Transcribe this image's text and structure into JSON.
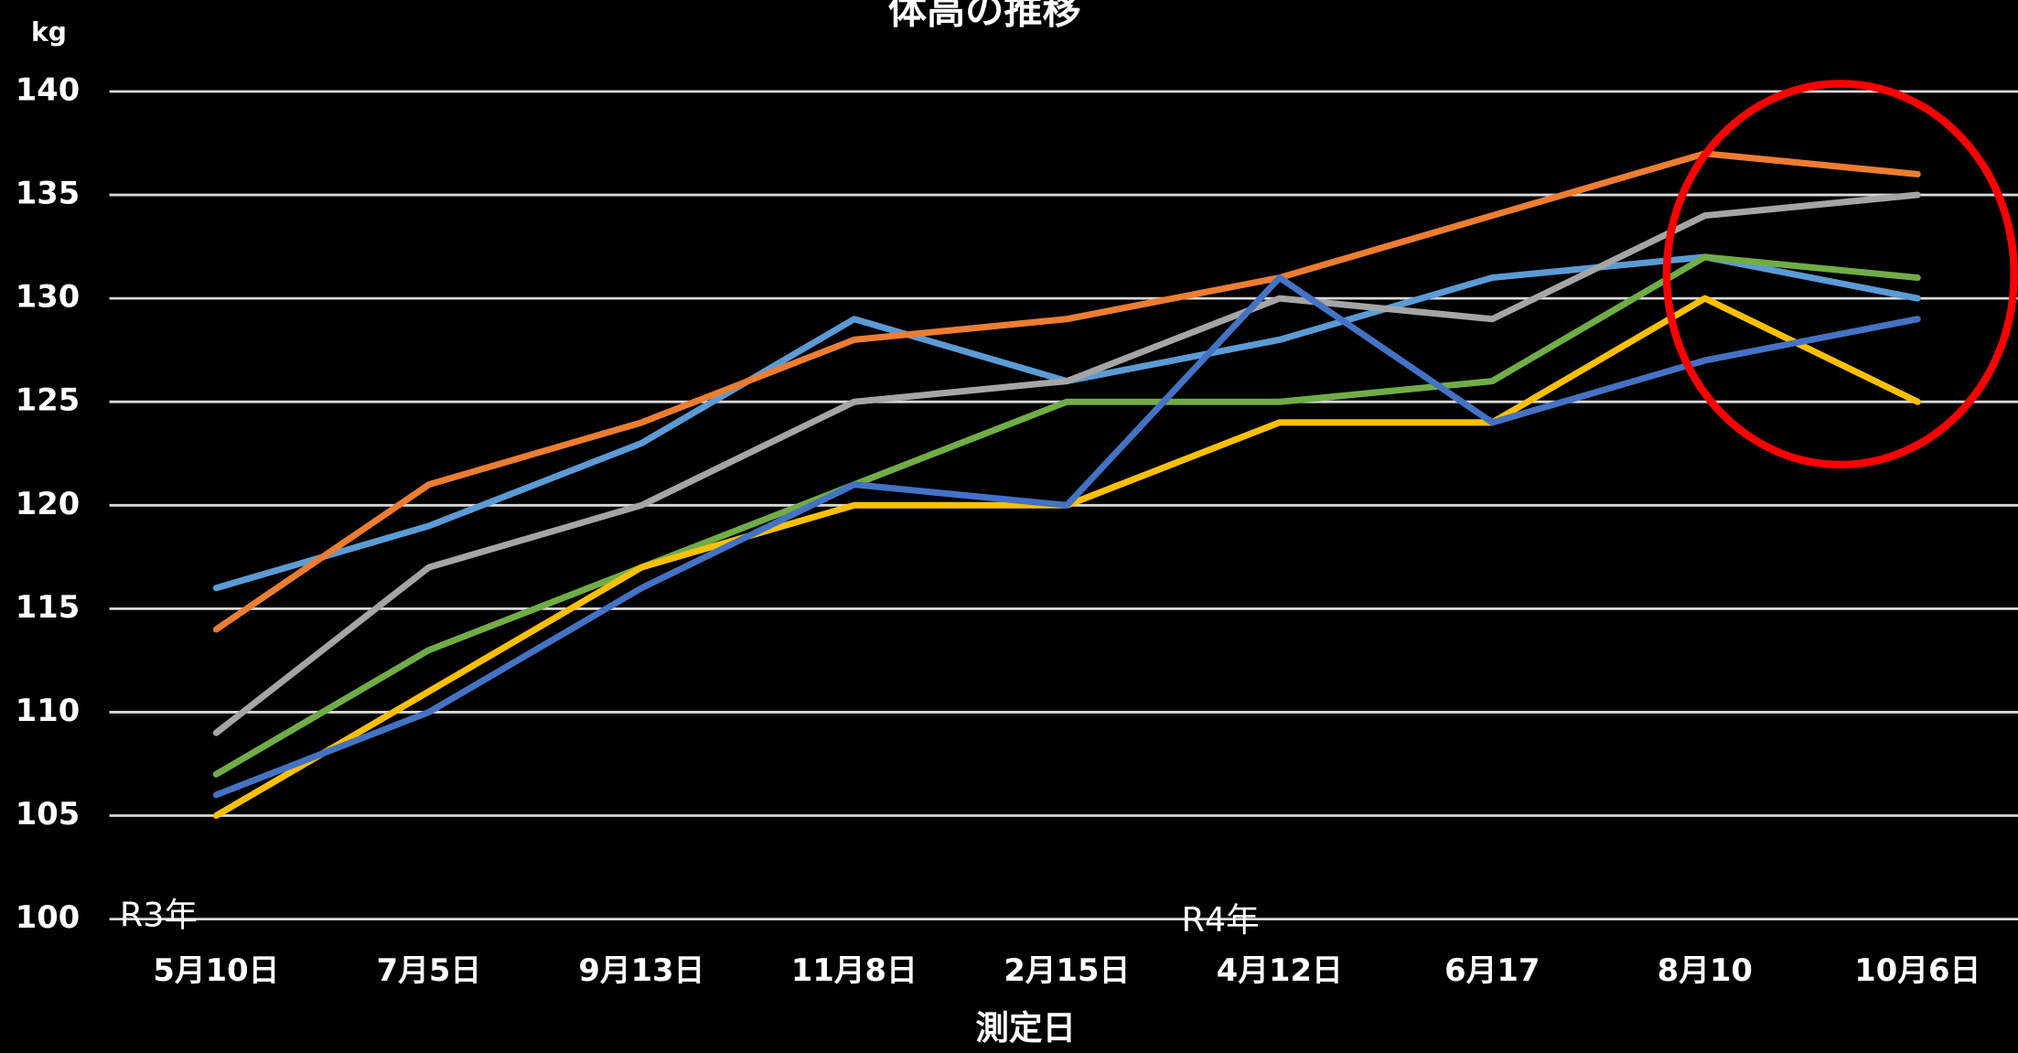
{
  "chart_data": {
    "type": "line",
    "title": "体高の推移",
    "y_label": "kg",
    "x_label": "測定日",
    "annotations": [
      "R3年",
      "R4年"
    ],
    "categories": [
      "5月10日",
      "7月5日",
      "9月13日",
      "11月8日",
      "2月15日",
      "4月12日",
      "6月17",
      "8月10",
      "10月6日"
    ],
    "series": [
      {
        "color": "#5b9bd5",
        "values": [
          116,
          119,
          123,
          129,
          126,
          128,
          131,
          132,
          130
        ]
      },
      {
        "color": "#ed7d31",
        "values": [
          114,
          121,
          124,
          128,
          129,
          131,
          134,
          137,
          136
        ]
      },
      {
        "color": "#a5a5a5",
        "values": [
          109,
          117,
          120,
          125,
          126,
          130,
          129,
          134,
          135
        ]
      },
      {
        "color": "#70ad47",
        "values": [
          107,
          113,
          117,
          121,
          125,
          125,
          126,
          132,
          131
        ]
      },
      {
        "color": "#ffc000",
        "values": [
          105,
          111,
          117,
          120,
          120,
          124,
          124,
          130,
          125
        ]
      },
      {
        "color": "#4472c4",
        "values": [
          106,
          110,
          116,
          121,
          120,
          131,
          124,
          127,
          129
        ]
      }
    ],
    "ylim": [
      100,
      140
    ],
    "yticks": [
      100,
      105,
      110,
      115,
      120,
      125,
      130,
      135,
      140
    ],
    "grid": true
  }
}
